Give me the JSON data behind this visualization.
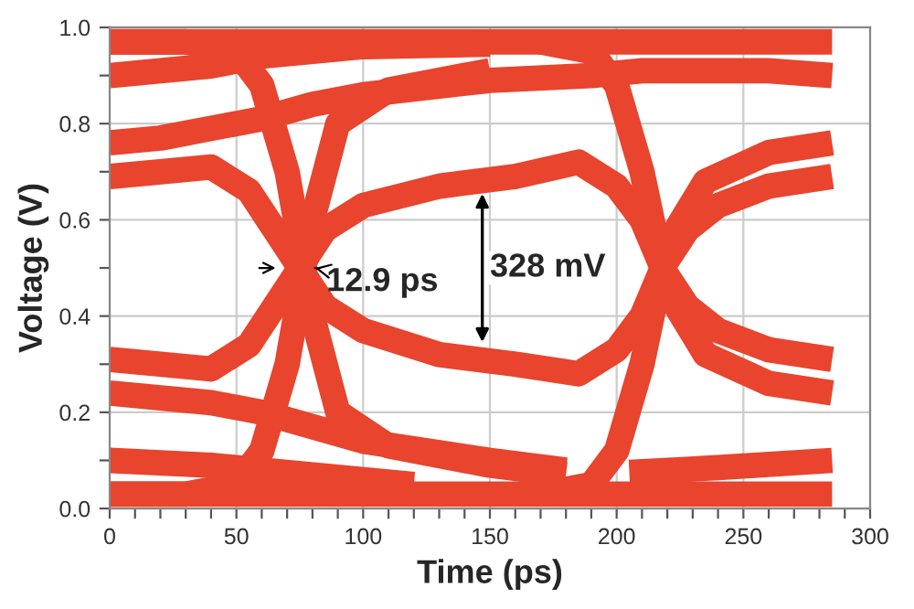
{
  "chart_data": {
    "type": "line",
    "xlabel": "Time (ps)",
    "ylabel": "Voltage (V)",
    "xlim": [
      0,
      300
    ],
    "ylim": [
      0,
      1.0
    ],
    "xticks": [
      0,
      {
        "value": 10,
        "label": null
      },
      {
        "value": 20,
        "label": null
      },
      {
        "value": 30,
        "label": null
      },
      {
        "value": 40,
        "label": null
      },
      50,
      {
        "value": 60,
        "label": null
      },
      {
        "value": 70,
        "label": null
      },
      {
        "value": 80,
        "label": null
      },
      {
        "value": 90,
        "label": null
      },
      100,
      {
        "value": 110,
        "label": null
      },
      {
        "value": 120,
        "label": null
      },
      {
        "value": 130,
        "label": null
      },
      {
        "value": 140,
        "label": null
      },
      150,
      {
        "value": 160,
        "label": null
      },
      {
        "value": 170,
        "label": null
      },
      {
        "value": 180,
        "label": null
      },
      {
        "value": 190,
        "label": null
      },
      200,
      {
        "value": 210,
        "label": null
      },
      {
        "value": 220,
        "label": null
      },
      {
        "value": 230,
        "label": null
      },
      {
        "value": 240,
        "label": null
      },
      250,
      {
        "value": 260,
        "label": null
      },
      {
        "value": 270,
        "label": null
      },
      {
        "value": 280,
        "label": null
      },
      {
        "value": 290,
        "label": null
      },
      300
    ],
    "yticks": [
      {
        "value": 0,
        "label": "0.0"
      },
      {
        "value": 0.1,
        "label": null
      },
      {
        "value": 0.2,
        "label": "0.2"
      },
      {
        "value": 0.3,
        "label": null
      },
      {
        "value": 0.4,
        "label": "0.4"
      },
      {
        "value": 0.5,
        "label": null
      },
      {
        "value": 0.6,
        "label": "0.6"
      },
      {
        "value": 0.7,
        "label": null
      },
      {
        "value": 0.8,
        "label": "0.8"
      },
      {
        "value": 0.9,
        "label": null
      },
      {
        "value": 1.0,
        "label": "1.0"
      }
    ],
    "grid": true,
    "legend": false,
    "marker": "none",
    "line_style": "solid",
    "annotations": [
      "12.9 ps",
      "328 mV"
    ],
    "series": [
      {
        "color": "#e8442e",
        "x": [
          0,
          285
        ],
        "values": [
          0.97,
          0.97
        ]
      },
      {
        "color": "#e8442e",
        "x": [
          0,
          285
        ],
        "values": [
          0.03,
          0.03
        ]
      },
      {
        "color": "#e8442e",
        "x": [
          0,
          20,
          40,
          60,
          80,
          100,
          150
        ],
        "values": [
          0.9,
          0.91,
          0.92,
          0.94,
          0.95,
          0.96,
          0.965
        ]
      },
      {
        "color": "#e8442e",
        "x": [
          0,
          20,
          40,
          60,
          80,
          100,
          150,
          190,
          210,
          230,
          260,
          285
        ],
        "values": [
          0.76,
          0.77,
          0.79,
          0.81,
          0.84,
          0.86,
          0.89,
          0.9,
          0.91,
          0.91,
          0.91,
          0.9
        ]
      },
      {
        "color": "#e8442e",
        "x": [
          0,
          20,
          40,
          55,
          65,
          75,
          85,
          100,
          130,
          160,
          185,
          200,
          210,
          218,
          228,
          240,
          260,
          285
        ],
        "values": [
          0.69,
          0.7,
          0.71,
          0.66,
          0.58,
          0.5,
          0.42,
          0.37,
          0.32,
          0.3,
          0.28,
          0.33,
          0.4,
          0.5,
          0.58,
          0.63,
          0.67,
          0.69
        ]
      },
      {
        "color": "#e8442e",
        "x": [
          0,
          20,
          40,
          55,
          65,
          75,
          85,
          100,
          130,
          160,
          185,
          200,
          210,
          218,
          228,
          240,
          260,
          285
        ],
        "values": [
          0.31,
          0.3,
          0.29,
          0.34,
          0.42,
          0.5,
          0.58,
          0.63,
          0.67,
          0.69,
          0.72,
          0.67,
          0.6,
          0.5,
          0.42,
          0.37,
          0.33,
          0.31
        ]
      },
      {
        "color": "#e8442e",
        "x": [
          0,
          30,
          50,
          60,
          70,
          80,
          90,
          110,
          150,
          180
        ],
        "values": [
          0.97,
          0.97,
          0.95,
          0.88,
          0.7,
          0.4,
          0.2,
          0.13,
          0.09,
          0.07
        ]
      },
      {
        "color": "#e8442e",
        "x": [
          0,
          30,
          50,
          60,
          70,
          80,
          90,
          110,
          150
        ],
        "values": [
          0.03,
          0.03,
          0.05,
          0.12,
          0.3,
          0.6,
          0.8,
          0.87,
          0.91
        ]
      },
      {
        "color": "#e8442e",
        "x": [
          0,
          20,
          40,
          60,
          80,
          100,
          150,
          180
        ],
        "values": [
          0.24,
          0.23,
          0.22,
          0.2,
          0.17,
          0.14,
          0.1,
          0.08
        ]
      },
      {
        "color": "#e8442e",
        "x": [
          0,
          40,
          80,
          120
        ],
        "values": [
          0.1,
          0.09,
          0.07,
          0.05
        ]
      },
      {
        "color": "#e8442e",
        "x": [
          170,
          190,
          200,
          210,
          220,
          235,
          260,
          285
        ],
        "values": [
          0.97,
          0.95,
          0.88,
          0.7,
          0.45,
          0.32,
          0.26,
          0.24
        ]
      },
      {
        "color": "#e8442e",
        "x": [
          170,
          190,
          200,
          210,
          220,
          235,
          260,
          285
        ],
        "values": [
          0.03,
          0.05,
          0.12,
          0.3,
          0.55,
          0.68,
          0.74,
          0.76
        ]
      },
      {
        "color": "#e8442e",
        "x": [
          205,
          240,
          285
        ],
        "values": [
          0.075,
          0.085,
          0.1
        ]
      }
    ]
  }
}
